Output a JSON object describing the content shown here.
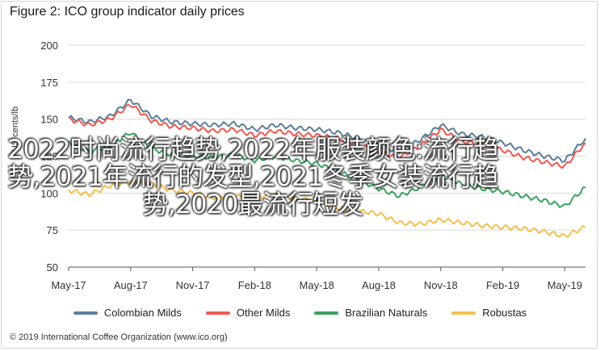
{
  "title": "Figure 2: ICO group indicator daily prices",
  "footer": "© 2019 International Coffee Organization (www.ico.org)",
  "overlay_text": "2022时尚流行趋势,2022年服装颜色:流行趋势,2021年流行的发型,2021冬季女装流行趋势,2020最流行短发",
  "chart_data": {
    "type": "line",
    "title": "Figure 2: ICO group indicator daily prices",
    "xlabel": "",
    "ylabel": "US cents/lb",
    "ylim": [
      50,
      200
    ],
    "yticks": [
      "50",
      "75",
      "100",
      "125",
      "150",
      "175",
      "200"
    ],
    "xticks": [
      "May-17",
      "Aug-17",
      "Nov-17",
      "Feb-18",
      "May-18",
      "Aug-18",
      "Nov-18",
      "Feb-19",
      "May-19"
    ],
    "grid": true,
    "legend_position": "bottom",
    "x": [
      "May-17",
      "Jun-17",
      "Jul-17",
      "Aug-17",
      "Sep-17",
      "Oct-17",
      "Nov-17",
      "Dec-17",
      "Jan-18",
      "Feb-18",
      "Mar-18",
      "Apr-18",
      "May-18",
      "Jun-18",
      "Jul-18",
      "Aug-18",
      "Sep-18",
      "Oct-18",
      "Nov-18",
      "Dec-18",
      "Jan-19",
      "Feb-19",
      "Mar-19",
      "Apr-19",
      "May-19",
      "Jun-19"
    ],
    "series": [
      {
        "name": "Colombian Milds",
        "color": "#5b7f99",
        "values": [
          151,
          148,
          152,
          163,
          152,
          148,
          147,
          146,
          147,
          143,
          146,
          144,
          143,
          141,
          137,
          132,
          128,
          136,
          146,
          140,
          138,
          134,
          129,
          125,
          122,
          137
        ]
      },
      {
        "name": "Other Milds",
        "color": "#f0594f",
        "values": [
          150,
          146,
          150,
          160,
          149,
          145,
          144,
          142,
          143,
          139,
          142,
          140,
          139,
          137,
          133,
          128,
          124,
          132,
          143,
          135,
          133,
          129,
          124,
          121,
          118,
          134
        ]
      },
      {
        "name": "Brazilian Naturals",
        "color": "#3aa35c",
        "values": [
          134,
          128,
          132,
          141,
          130,
          126,
          125,
          124,
          126,
          122,
          125,
          122,
          120,
          115,
          109,
          103,
          98,
          104,
          112,
          106,
          103,
          101,
          98,
          95,
          91,
          104
        ]
      },
      {
        "name": "Robustas",
        "color": "#f5bf4f",
        "values": [
          102,
          99,
          105,
          108,
          106,
          102,
          100,
          97,
          98,
          97,
          99,
          96,
          95,
          90,
          88,
          86,
          80,
          79,
          82,
          80,
          78,
          77,
          76,
          74,
          71,
          77
        ]
      }
    ]
  }
}
